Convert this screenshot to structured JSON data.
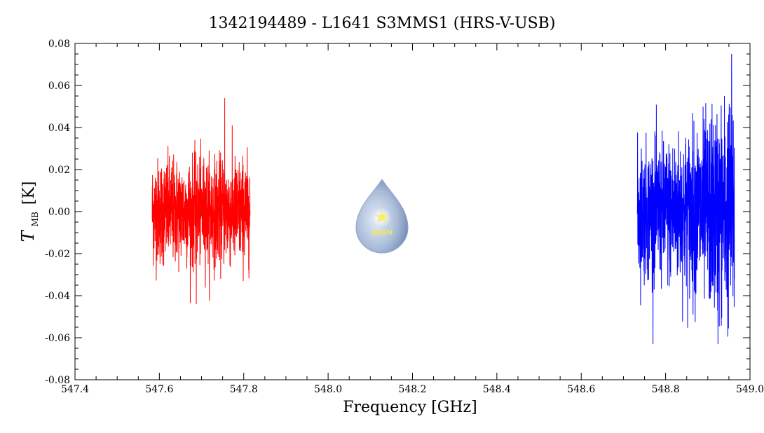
{
  "chart_data": {
    "type": "line",
    "title": "1342194489 - L1641 S3MMS1 (HRS-V-USB)",
    "xlabel": "Frequency [GHz]",
    "ylabel": "T",
    "ylabel_subscript": "MB",
    "ylabel_unit": "[K]",
    "xlim": [
      547.4,
      549.0
    ],
    "ylim": [
      -0.08,
      0.08
    ],
    "x_ticks": [
      "547.4",
      "547.6",
      "547.8",
      "548.0",
      "548.2",
      "548.4",
      "548.6",
      "548.8",
      "549.0"
    ],
    "y_ticks": [
      "-0.08",
      "-0.06",
      "-0.04",
      "-0.02",
      "0.00",
      "0.02",
      "0.04",
      "0.06",
      "0.08"
    ],
    "grid": false,
    "logo_text": "WISH",
    "series": [
      {
        "color": "#ff0000",
        "x_range": [
          547.583,
          547.815
        ],
        "typical_range": [
          -0.02,
          0.02
        ],
        "min": -0.044,
        "max": 0.054
      },
      {
        "color": "#0000ff",
        "x_range": [
          548.733,
          548.963
        ],
        "typical_range": [
          -0.025,
          0.025
        ],
        "min": -0.063,
        "max": 0.075
      }
    ]
  }
}
